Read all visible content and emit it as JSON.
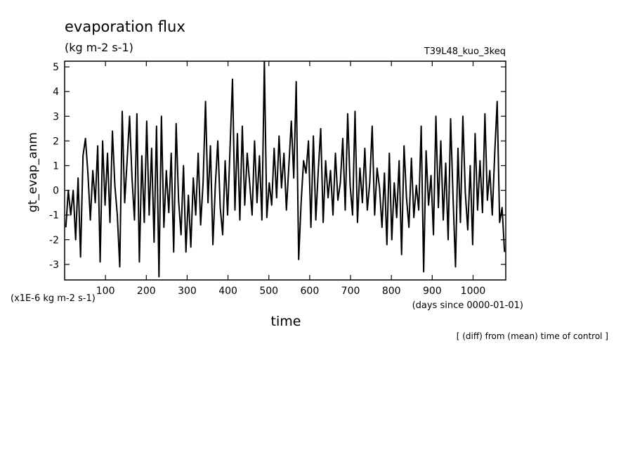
{
  "chart_data": {
    "type": "line",
    "title": "evaporation flux",
    "subtitle": "(kg m-2 s-1)",
    "run_label": "T39L48_kuo_3keq",
    "y_label": "gt_evap_anm",
    "y_unit": "(x1E-6 kg m-2 s-1)",
    "x_label": "time",
    "x_unit": "(days since 0000-01-01)",
    "note": "[ (diff) from (mean) time of control ]",
    "color": "#000000",
    "xlim": [
      0,
      1080
    ],
    "ylim": [
      -3.63,
      5.23
    ],
    "xticks": [
      100,
      200,
      300,
      400,
      500,
      600,
      700,
      800,
      900,
      1000
    ],
    "yticks": [
      -3,
      -2,
      -1,
      0,
      1,
      2,
      3,
      4,
      5
    ],
    "x": [
      3,
      9,
      15,
      21,
      27,
      33,
      39,
      45,
      51,
      57,
      63,
      69,
      75,
      81,
      87,
      93,
      99,
      105,
      111,
      117,
      123,
      129,
      135,
      141,
      147,
      153,
      159,
      165,
      171,
      177,
      183,
      189,
      195,
      201,
      207,
      213,
      219,
      225,
      231,
      237,
      243,
      249,
      255,
      261,
      267,
      273,
      279,
      285,
      291,
      297,
      303,
      309,
      315,
      321,
      327,
      333,
      339,
      345,
      351,
      357,
      363,
      369,
      375,
      381,
      387,
      393,
      399,
      405,
      411,
      417,
      423,
      429,
      435,
      441,
      447,
      453,
      459,
      465,
      471,
      477,
      483,
      489,
      495,
      501,
      507,
      513,
      519,
      525,
      531,
      537,
      543,
      549,
      555,
      561,
      567,
      573,
      579,
      585,
      591,
      597,
      603,
      609,
      615,
      621,
      627,
      633,
      639,
      645,
      651,
      657,
      663,
      669,
      675,
      681,
      687,
      693,
      699,
      705,
      711,
      717,
      723,
      729,
      735,
      741,
      747,
      753,
      759,
      765,
      771,
      777,
      783,
      789,
      795,
      801,
      807,
      813,
      819,
      825,
      831,
      837,
      843,
      849,
      855,
      861,
      867,
      873,
      879,
      885,
      891,
      897,
      903,
      909,
      915,
      921,
      927,
      933,
      939,
      945,
      951,
      957,
      963,
      969,
      975,
      981,
      987,
      993,
      999,
      1005,
      1011,
      1017,
      1023,
      1029,
      1035,
      1041,
      1047,
      1053,
      1059,
      1065,
      1071,
      1077
    ],
    "values": [
      -1.5,
      0,
      -1,
      0,
      -2,
      0.5,
      -2.7,
      1.4,
      2.1,
      0.7,
      -1.2,
      0.8,
      -0.5,
      1.8,
      -2.9,
      2.0,
      -0.6,
      1.5,
      -1.3,
      2.4,
      0.2,
      -1.0,
      -3.1,
      3.2,
      -0.5,
      1.2,
      3.0,
      0.5,
      -1.2,
      3.1,
      -2.9,
      1.4,
      -1.3,
      2.8,
      -1.0,
      1.7,
      -2.1,
      2.6,
      -3.5,
      3.0,
      -1.5,
      0.8,
      -0.9,
      1.5,
      -2.5,
      2.7,
      -0.4,
      -1.8,
      1.0,
      -2.5,
      -0.2,
      -2.3,
      0.5,
      -1.0,
      1.5,
      -1.4,
      0.3,
      3.6,
      -0.5,
      1.8,
      -2.2,
      0.2,
      2.0,
      -0.7,
      -1.8,
      1.2,
      -1.0,
      1.7,
      4.5,
      -0.8,
      2.3,
      -1.2,
      2.6,
      -0.6,
      1.5,
      0.3,
      -1.0,
      2.0,
      -0.5,
      1.4,
      -1.2,
      5.2,
      -1.1,
      0.3,
      -0.6,
      1.7,
      -0.3,
      2.2,
      0.1,
      1.5,
      -0.8,
      1.0,
      2.8,
      0.5,
      4.4,
      -2.8,
      -0.5,
      1.2,
      0.7,
      2.0,
      -1.5,
      2.2,
      -1.2,
      0.8,
      2.5,
      -1.3,
      1.2,
      -0.3,
      0.8,
      -1.0,
      1.5,
      -0.4,
      0.3,
      2.1,
      -0.8,
      3.1,
      0.2,
      -1.0,
      3.2,
      -1.3,
      0.9,
      -0.5,
      1.7,
      -0.8,
      0.3,
      2.6,
      -1.0,
      0.9,
      0.1,
      -1.5,
      0.7,
      -2.2,
      1.5,
      -2.0,
      0.3,
      -1.1,
      1.2,
      -2.6,
      1.8,
      -0.3,
      -1.5,
      1.3,
      -1.1,
      0.2,
      -0.8,
      2.6,
      -3.3,
      1.6,
      -0.6,
      0.6,
      -1.8,
      3.0,
      -0.7,
      2.0,
      -1.2,
      1.1,
      -2.0,
      2.9,
      -0.3,
      -3.1,
      1.7,
      -1.3,
      3.0,
      -0.1,
      -1.6,
      1.0,
      -2.2,
      2.3,
      -0.8,
      1.2,
      -0.9,
      3.1,
      -0.4,
      0.8,
      -1.0,
      1.5,
      3.6,
      -1.3,
      -0.7,
      -2.5
    ]
  }
}
